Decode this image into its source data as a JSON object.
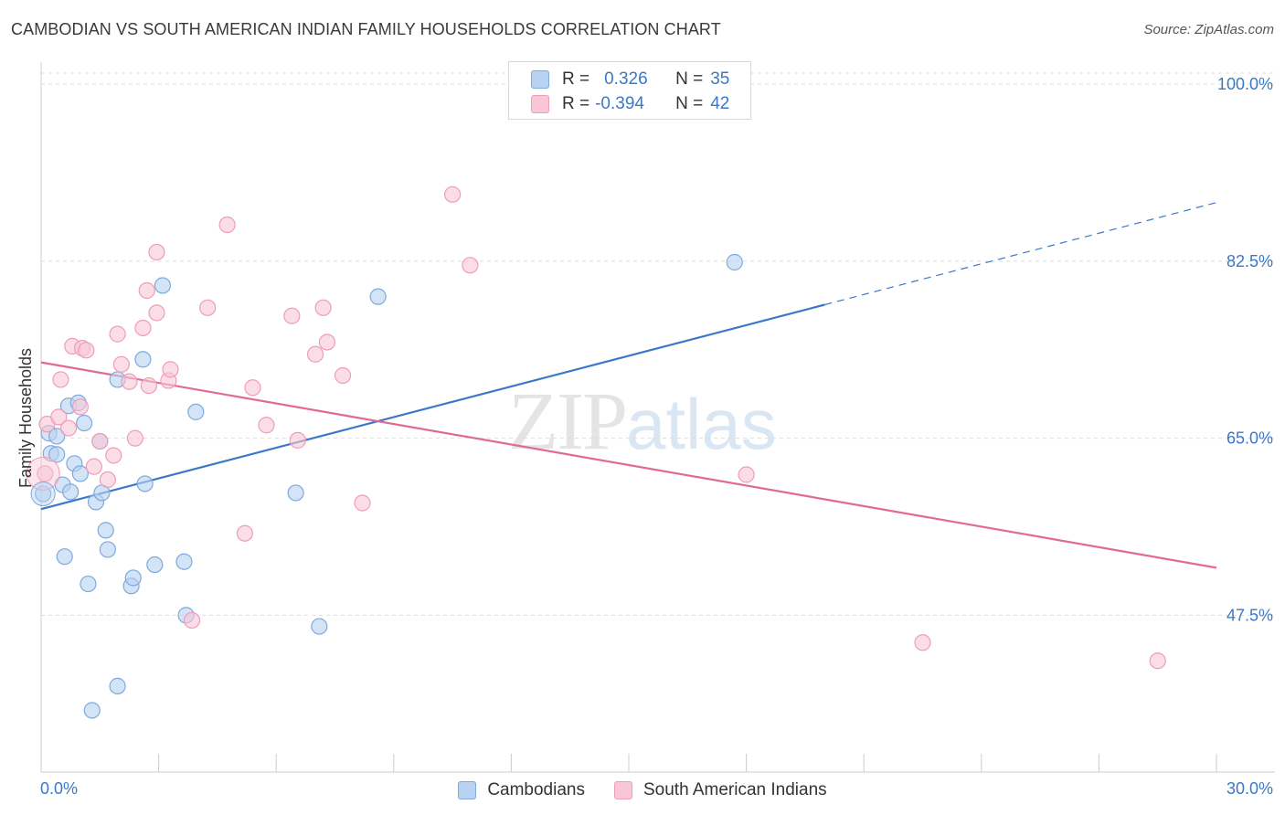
{
  "header": {
    "title": "CAMBODIAN VS SOUTH AMERICAN INDIAN FAMILY HOUSEHOLDS CORRELATION CHART",
    "source": "Source: ZipAtlas.com"
  },
  "watermark": {
    "zip": "ZIP",
    "atlas": "atlas"
  },
  "colors": {
    "blue": "#3b78c8",
    "blue_fill": "#b8d2f2",
    "blue_stroke": "#7ea9df",
    "pink": "#e06a94",
    "pink_fill": "#f8c6d6",
    "pink_stroke": "#ee9db8",
    "grid": "#dddddd"
  },
  "legend": {
    "rows": [
      {
        "r_label": "R =",
        "r_value": "0.326",
        "n_label": "N =",
        "n_value": "35"
      },
      {
        "r_label": "R =",
        "r_value": "-0.394",
        "n_label": "N =",
        "n_value": "42"
      }
    ]
  },
  "chart_data": {
    "type": "scatter",
    "title": "CAMBODIAN VS SOUTH AMERICAN INDIAN FAMILY HOUSEHOLDS CORRELATION CHART",
    "xlabel": "",
    "ylabel": "Family Households",
    "xlim": [
      0,
      30
    ],
    "ylim": [
      32,
      102
    ],
    "x_tick_labels": [
      "0.0%",
      "30.0%"
    ],
    "y_ticks": [
      47.5,
      65.0,
      82.5,
      100.0
    ],
    "y_tick_labels": [
      "47.5%",
      "65.0%",
      "82.5%",
      "100.0%"
    ],
    "grid": true,
    "legend_position": "top-center",
    "series": [
      {
        "name": "Cambodians",
        "color": "#3b78c8",
        "points": [
          [
            0.05,
            59.5
          ],
          [
            0.2,
            65.5
          ],
          [
            0.25,
            63.5
          ],
          [
            0.4,
            65.2
          ],
          [
            0.4,
            63.4
          ],
          [
            0.55,
            60.4
          ],
          [
            0.6,
            53.3
          ],
          [
            0.7,
            68.2
          ],
          [
            0.75,
            59.7
          ],
          [
            0.85,
            62.5
          ],
          [
            0.95,
            68.5
          ],
          [
            1.0,
            61.5
          ],
          [
            1.1,
            66.5
          ],
          [
            1.2,
            50.6
          ],
          [
            1.3,
            38.1
          ],
          [
            1.4,
            58.7
          ],
          [
            1.5,
            64.7
          ],
          [
            1.55,
            59.6
          ],
          [
            1.65,
            55.9
          ],
          [
            1.7,
            54.0
          ],
          [
            1.95,
            70.8
          ],
          [
            1.95,
            40.5
          ],
          [
            2.3,
            50.4
          ],
          [
            2.35,
            51.2
          ],
          [
            2.6,
            72.8
          ],
          [
            2.65,
            60.5
          ],
          [
            2.9,
            52.5
          ],
          [
            3.1,
            80.1
          ],
          [
            3.65,
            52.8
          ],
          [
            3.7,
            47.5
          ],
          [
            3.95,
            67.6
          ],
          [
            6.5,
            59.6
          ],
          [
            7.1,
            46.4
          ],
          [
            8.6,
            79.0
          ],
          [
            17.7,
            82.4
          ]
        ],
        "trend": {
          "x": [
            0,
            20
          ],
          "y": [
            58.0,
            78.2
          ],
          "dashed_to": [
            30,
            88.3
          ]
        }
      },
      {
        "name": "South American Indians",
        "color": "#e06a94",
        "points": [
          [
            0.1,
            61.5
          ],
          [
            0.15,
            66.4
          ],
          [
            0.45,
            67.1
          ],
          [
            0.5,
            70.8
          ],
          [
            0.7,
            66.0
          ],
          [
            0.8,
            74.1
          ],
          [
            1.0,
            68.1
          ],
          [
            1.05,
            73.9
          ],
          [
            1.15,
            73.7
          ],
          [
            1.35,
            62.2
          ],
          [
            1.5,
            64.7
          ],
          [
            1.7,
            60.9
          ],
          [
            1.85,
            63.3
          ],
          [
            1.95,
            75.3
          ],
          [
            2.05,
            72.3
          ],
          [
            2.25,
            70.6
          ],
          [
            2.4,
            65.0
          ],
          [
            2.6,
            75.9
          ],
          [
            2.7,
            79.6
          ],
          [
            2.75,
            70.2
          ],
          [
            2.95,
            77.4
          ],
          [
            2.95,
            83.4
          ],
          [
            3.25,
            70.7
          ],
          [
            3.3,
            71.8
          ],
          [
            3.85,
            47.0
          ],
          [
            4.25,
            77.9
          ],
          [
            4.75,
            86.1
          ],
          [
            5.2,
            55.6
          ],
          [
            5.4,
            70.0
          ],
          [
            5.75,
            66.3
          ],
          [
            6.4,
            77.1
          ],
          [
            6.55,
            64.8
          ],
          [
            7.0,
            73.3
          ],
          [
            7.2,
            77.9
          ],
          [
            7.3,
            74.5
          ],
          [
            7.7,
            71.2
          ],
          [
            8.2,
            58.6
          ],
          [
            10.5,
            89.1
          ],
          [
            10.95,
            82.1
          ],
          [
            18.0,
            61.4
          ],
          [
            22.5,
            44.8
          ],
          [
            28.5,
            43.0
          ]
        ],
        "trend": {
          "x": [
            0,
            30
          ],
          "y": [
            72.5,
            52.2
          ]
        }
      }
    ]
  }
}
